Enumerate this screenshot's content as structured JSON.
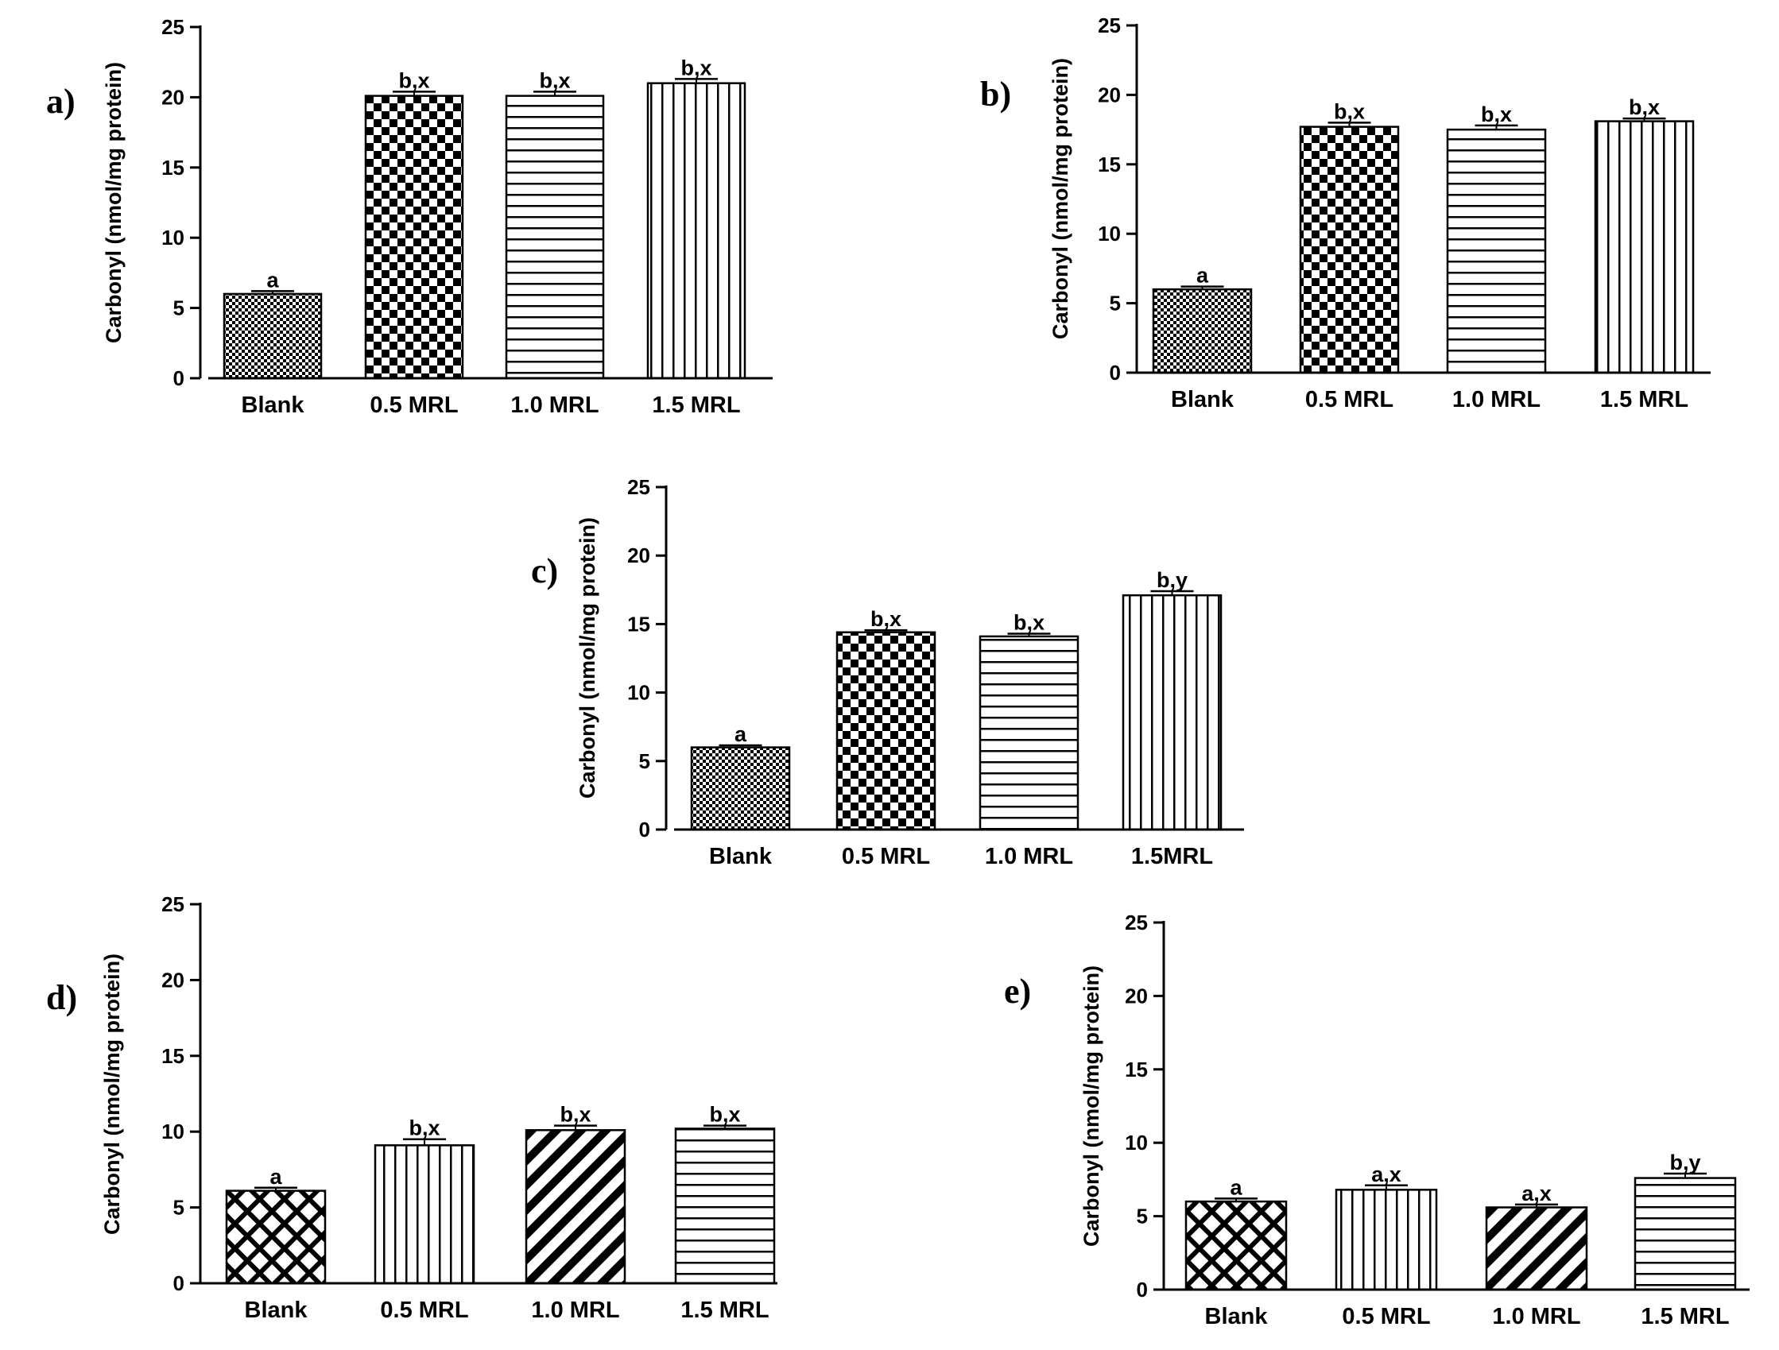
{
  "chart_data": [
    {
      "type": "bar",
      "panel_label": "a)",
      "title": "",
      "xlabel": "",
      "ylabel": "Carbonyl (nmol/mg protein)",
      "ylim": [
        0,
        25
      ],
      "yticks": [
        0,
        5,
        10,
        15,
        20,
        25
      ],
      "categories": [
        "Blank",
        "0.5 MRL",
        "1.0 MRL",
        "1.5 MRL"
      ],
      "values": [
        6.0,
        20.1,
        20.1,
        21.0
      ],
      "errors": [
        0.2,
        0.3,
        0.3,
        0.3
      ],
      "significance": [
        "a",
        "b,x",
        "b,x",
        "b,x"
      ],
      "patterns": [
        "fine-check",
        "checker",
        "hlines",
        "vlines"
      ]
    },
    {
      "type": "bar",
      "panel_label": "b)",
      "title": "",
      "xlabel": "",
      "ylabel": "Carbonyl (nmol/mg protein)",
      "ylim": [
        0,
        25
      ],
      "yticks": [
        0,
        5,
        10,
        15,
        20,
        25
      ],
      "categories": [
        "Blank",
        "0.5 MRL",
        "1.0 MRL",
        "1.5 MRL"
      ],
      "values": [
        6.0,
        17.7,
        17.5,
        18.1
      ],
      "errors": [
        0.2,
        0.3,
        0.3,
        0.2
      ],
      "significance": [
        "a",
        "b,x",
        "b,x",
        "b,x"
      ],
      "patterns": [
        "fine-check",
        "checker",
        "hlines",
        "vlines"
      ]
    },
    {
      "type": "bar",
      "panel_label": "c)",
      "title": "",
      "xlabel": "",
      "ylabel": "Carbonyl (nmol/mg protein)",
      "ylim": [
        0,
        25
      ],
      "yticks": [
        0,
        5,
        10,
        15,
        20,
        25
      ],
      "categories": [
        "Blank",
        "0.5 MRL",
        "1.0 MRL",
        "1.5MRL"
      ],
      "values": [
        6.0,
        14.4,
        14.1,
        17.1
      ],
      "errors": [
        0.15,
        0.15,
        0.2,
        0.3
      ],
      "significance": [
        "a",
        "b,x",
        "b,x",
        "b,y"
      ],
      "patterns": [
        "fine-check",
        "checker",
        "hlines",
        "vlines"
      ]
    },
    {
      "type": "bar",
      "panel_label": "d)",
      "title": "",
      "xlabel": "",
      "ylabel": "Carbonyl (nmol/mg protein)",
      "ylim": [
        0,
        25
      ],
      "yticks": [
        0,
        5,
        10,
        15,
        20,
        25
      ],
      "categories": [
        "Blank",
        "0.5 MRL",
        "1.0 MRL",
        "1.5 MRL"
      ],
      "values": [
        6.1,
        9.1,
        10.1,
        10.2
      ],
      "errors": [
        0.2,
        0.4,
        0.3,
        0.2
      ],
      "significance": [
        "a",
        "b,x",
        "b,x",
        "b,x"
      ],
      "patterns": [
        "crosshatch",
        "vlines",
        "diagonal",
        "hlines"
      ]
    },
    {
      "type": "bar",
      "panel_label": "e)",
      "title": "",
      "xlabel": "",
      "ylabel": "Carbonyl (nmol/mg protein)",
      "ylim": [
        0,
        25
      ],
      "yticks": [
        0,
        5,
        10,
        15,
        20,
        25
      ],
      "categories": [
        "Blank",
        "0.5 MRL",
        "1.0 MRL",
        "1.5 MRL"
      ],
      "values": [
        6.0,
        6.8,
        5.6,
        7.6
      ],
      "errors": [
        0.2,
        0.3,
        0.2,
        0.3
      ],
      "significance": [
        "a",
        "a,x",
        "a,x",
        "b,y"
      ],
      "patterns": [
        "crosshatch",
        "vlines",
        "diagonal",
        "hlines"
      ]
    }
  ]
}
